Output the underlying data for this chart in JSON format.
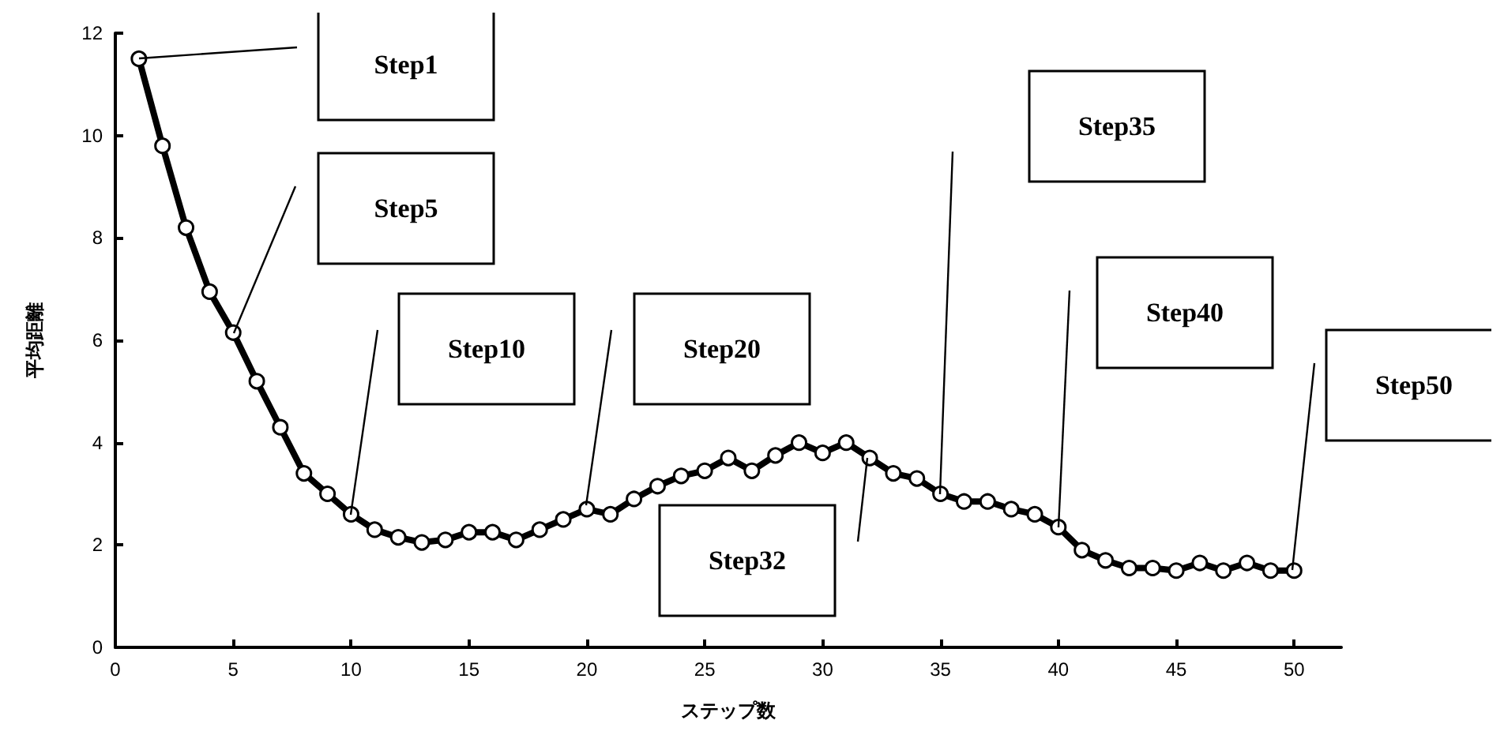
{
  "chart_data": {
    "type": "line",
    "xlabel": "ステップ数",
    "ylabel": "平均距離",
    "x": [
      1,
      2,
      3,
      4,
      5,
      6,
      7,
      8,
      9,
      10,
      11,
      12,
      13,
      14,
      15,
      16,
      17,
      18,
      19,
      20,
      21,
      22,
      23,
      24,
      25,
      26,
      27,
      28,
      29,
      30,
      31,
      32,
      33,
      34,
      35,
      36,
      37,
      38,
      39,
      40,
      41,
      42,
      43,
      44,
      45,
      46,
      47,
      48,
      49,
      50
    ],
    "series": [
      {
        "color": "#000000",
        "values": [
          11.5,
          9.8,
          8.2,
          6.95,
          6.15,
          5.2,
          4.3,
          3.4,
          3.0,
          2.6,
          2.3,
          2.15,
          2.05,
          2.1,
          2.25,
          2.25,
          2.1,
          2.3,
          2.5,
          2.7,
          2.6,
          2.9,
          3.15,
          3.35,
          3.45,
          3.7,
          3.45,
          3.75,
          4.0,
          3.8,
          4.0,
          3.7,
          3.4,
          3.3,
          3.0,
          2.85,
          2.85,
          2.7,
          2.6,
          2.35,
          1.9,
          1.7,
          1.55,
          1.55,
          1.5,
          1.65,
          1.5,
          1.65,
          1.5,
          1.5
        ]
      }
    ],
    "xlim": [
      0,
      52
    ],
    "xticks": [
      0,
      5,
      10,
      15,
      20,
      25,
      30,
      35,
      40,
      45,
      50
    ],
    "ylim": [
      0,
      12
    ],
    "yticks": [
      0,
      2,
      4,
      6,
      8,
      10,
      12
    ],
    "grid": false,
    "marker": "circle",
    "line_style": "solid",
    "annotations": [
      "Step1",
      "Step5",
      "Step10",
      "Step20",
      "Step32",
      "Step35",
      "Step40",
      "Step50"
    ]
  }
}
